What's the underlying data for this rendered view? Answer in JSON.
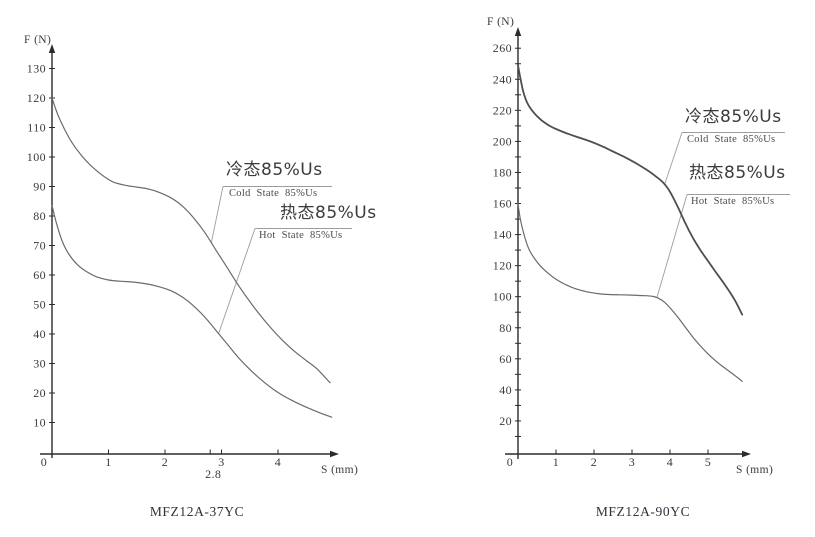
{
  "colors": {
    "background": "#ffffff",
    "axis": "#2b2b2b",
    "curve": "#6b6b6b",
    "curve_emphasis": "#4e4e4e",
    "leader": "#9c9c9c",
    "text": "#3b3b3b"
  },
  "chart_data": [
    {
      "type": "line",
      "title": "MFZ12A-37YC",
      "xlabel": "S (mm)",
      "ylabel": "F (N)",
      "origin_label": "0",
      "xlim": [
        0,
        5.2
      ],
      "ylim": [
        0,
        140
      ],
      "grid": false,
      "x_ticks": [
        1,
        2,
        3,
        4
      ],
      "x_extra_tick": 2.8,
      "x_extra_tick_label": "2.8",
      "y_ticks": [
        10,
        20,
        30,
        40,
        50,
        60,
        70,
        80,
        90,
        100,
        110,
        120,
        130
      ],
      "y_tick_labels": [
        10,
        20,
        30,
        40,
        50,
        60,
        70,
        80,
        90,
        100,
        110,
        120,
        130
      ],
      "series": [
        {
          "id": "cold",
          "label_zh": "冷态85%Us",
          "label_en": "Cold State 85%Us",
          "callout": [
            2.82,
            71
          ],
          "points": [
            [
              0,
              120
            ],
            [
              0.1,
              114.5
            ],
            [
              0.22,
              109.5
            ],
            [
              0.35,
              105
            ],
            [
              0.5,
              101
            ],
            [
              0.65,
              97.8
            ],
            [
              0.8,
              95.2
            ],
            [
              0.95,
              93
            ],
            [
              1.1,
              91.4
            ],
            [
              1.3,
              90.4
            ],
            [
              1.5,
              89.8
            ],
            [
              1.7,
              89.2
            ],
            [
              1.9,
              88
            ],
            [
              2.1,
              86.2
            ],
            [
              2.3,
              83.5
            ],
            [
              2.5,
              79.5
            ],
            [
              2.7,
              74.5
            ],
            [
              2.9,
              68.5
            ],
            [
              3.1,
              62.5
            ],
            [
              3.3,
              56.5
            ],
            [
              3.5,
              51
            ],
            [
              3.7,
              46
            ],
            [
              3.9,
              41.5
            ],
            [
              4.1,
              37.5
            ],
            [
              4.3,
              34
            ],
            [
              4.5,
              31
            ],
            [
              4.7,
              28
            ],
            [
              4.92,
              23.5
            ]
          ]
        },
        {
          "id": "hot",
          "label_zh": "热态85%Us",
          "label_en": "Hot State 85%Us",
          "callout": [
            2.95,
            40.2
          ],
          "points": [
            [
              0,
              83.5
            ],
            [
              0.08,
              77.5
            ],
            [
              0.18,
              71.5
            ],
            [
              0.3,
              67
            ],
            [
              0.45,
              63.5
            ],
            [
              0.6,
              61.3
            ],
            [
              0.8,
              59.3
            ],
            [
              1.0,
              58.3
            ],
            [
              1.2,
              57.9
            ],
            [
              1.45,
              57.6
            ],
            [
              1.7,
              56.9
            ],
            [
              1.9,
              56
            ],
            [
              2.1,
              54.7
            ],
            [
              2.3,
              52.6
            ],
            [
              2.5,
              49.6
            ],
            [
              2.7,
              45.8
            ],
            [
              2.9,
              41.3
            ],
            [
              3.1,
              36.6
            ],
            [
              3.3,
              32
            ],
            [
              3.5,
              28
            ],
            [
              3.7,
              24.5
            ],
            [
              3.9,
              21.5
            ],
            [
              4.1,
              19
            ],
            [
              4.3,
              17
            ],
            [
              4.5,
              15.2
            ],
            [
              4.7,
              13.6
            ],
            [
              4.95,
              11.8
            ]
          ]
        }
      ]
    },
    {
      "type": "line",
      "title": "MFZ12A-90YC",
      "xlabel": "S (mm)",
      "ylabel": "F (N)",
      "origin_label": "0",
      "xlim": [
        0,
        6.1
      ],
      "ylim": [
        0,
        275
      ],
      "grid": false,
      "x_ticks": [
        1,
        2,
        3,
        4,
        5
      ],
      "x_extra_tick": null,
      "x_extra_tick_label": "",
      "y_ticks": [
        10,
        20,
        30,
        40,
        50,
        60,
        70,
        80,
        90,
        100,
        110,
        120,
        130,
        140,
        150,
        160,
        170,
        180,
        190,
        200,
        210,
        220,
        230,
        240,
        250,
        260
      ],
      "y_tick_labels": [
        20,
        40,
        60,
        80,
        100,
        120,
        140,
        160,
        180,
        200,
        220,
        240,
        260
      ],
      "series": [
        {
          "id": "cold",
          "label_zh": "冷态85%Us",
          "label_en": "Cold State 85%Us",
          "callout": [
            3.85,
            171.7
          ],
          "points": [
            [
              0,
              249
            ],
            [
              0.06,
              241
            ],
            [
              0.14,
              232
            ],
            [
              0.25,
              224.5
            ],
            [
              0.4,
              219
            ],
            [
              0.6,
              214
            ],
            [
              0.8,
              210.5
            ],
            [
              1.0,
              208
            ],
            [
              1.3,
              205
            ],
            [
              1.6,
              202.5
            ],
            [
              1.9,
              200
            ],
            [
              2.2,
              197
            ],
            [
              2.5,
              193.5
            ],
            [
              2.8,
              190
            ],
            [
              3.1,
              186
            ],
            [
              3.4,
              181.5
            ],
            [
              3.6,
              178
            ],
            [
              3.8,
              174
            ],
            [
              3.95,
              169.5
            ],
            [
              4.1,
              163
            ],
            [
              4.25,
              155.5
            ],
            [
              4.4,
              147.5
            ],
            [
              4.6,
              138
            ],
            [
              4.8,
              130
            ],
            [
              5.0,
              123
            ],
            [
              5.2,
              116
            ],
            [
              5.45,
              107.5
            ],
            [
              5.7,
              98
            ],
            [
              5.9,
              88.5
            ]
          ]
        },
        {
          "id": "hot",
          "label_zh": "热态85%Us",
          "label_en": "Hot State 85%Us",
          "callout": [
            3.66,
            99.8
          ],
          "points": [
            [
              0,
              160
            ],
            [
              0.05,
              151.5
            ],
            [
              0.12,
              143.5
            ],
            [
              0.2,
              136.5
            ],
            [
              0.3,
              130
            ],
            [
              0.45,
              124
            ],
            [
              0.6,
              119.5
            ],
            [
              0.8,
              115
            ],
            [
              1.0,
              111.2
            ],
            [
              1.25,
              107.8
            ],
            [
              1.5,
              105.2
            ],
            [
              1.8,
              103.2
            ],
            [
              2.1,
              102
            ],
            [
              2.4,
              101.4
            ],
            [
              2.7,
              101.2
            ],
            [
              3.0,
              101
            ],
            [
              3.3,
              100.7
            ],
            [
              3.55,
              100.2
            ],
            [
              3.7,
              99
            ],
            [
              3.85,
              96.5
            ],
            [
              4.0,
              92.8
            ],
            [
              4.2,
              87
            ],
            [
              4.4,
              80.5
            ],
            [
              4.6,
              74
            ],
            [
              4.8,
              68.3
            ],
            [
              5.0,
              63.2
            ],
            [
              5.2,
              58.7
            ],
            [
              5.4,
              54.8
            ],
            [
              5.65,
              50.3
            ],
            [
              5.9,
              45.5
            ]
          ]
        }
      ]
    }
  ]
}
